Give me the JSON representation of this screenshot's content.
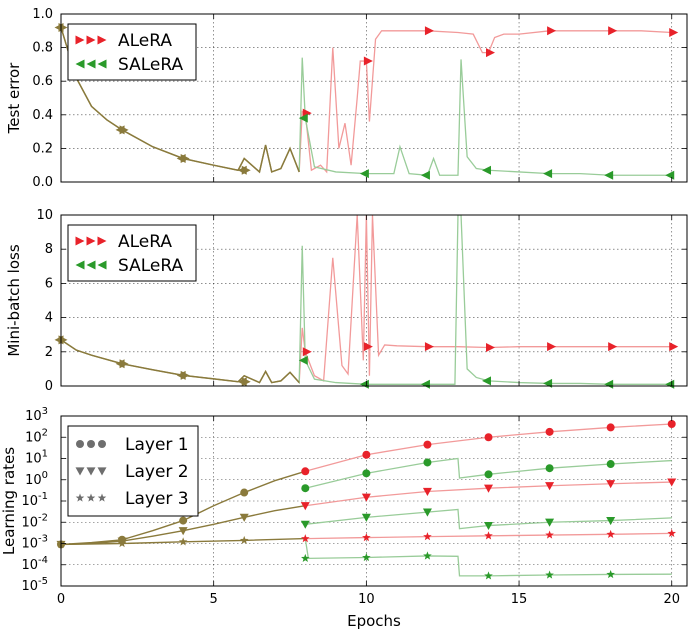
{
  "colors": {
    "alera": "#e8222a",
    "salera": "#2a9a2a",
    "alera_line": "#f29a9a",
    "salera_line": "#99cc99",
    "both": "#8a7a3c",
    "legend_gray": "#6e6e6e"
  },
  "chart_data": [
    {
      "type": "line",
      "ylabel": "Test error",
      "xlabel": "",
      "xlim": [
        0,
        20.5
      ],
      "ylim": [
        0,
        1
      ],
      "yticks": [
        "0.0",
        "0.2",
        "0.4",
        "0.6",
        "0.8",
        "1.0"
      ],
      "legend_position": "top-left",
      "series": [
        {
          "name": "ALeRA",
          "x": [
            0,
            0.5,
            1,
            1.5,
            2,
            3,
            4,
            5,
            5.8,
            6,
            6.5,
            6.7,
            6.9,
            7.2,
            7.5,
            7.8,
            7.9,
            8,
            8.2,
            8.5,
            8.7,
            8.9,
            9.1,
            9.3,
            9.5,
            9.7,
            9.8,
            10,
            10.1,
            10.3,
            10.5,
            10.8,
            11,
            12,
            13,
            13.5,
            13.8,
            14,
            14.2,
            14.5,
            15,
            16,
            17,
            18,
            19,
            20
          ],
          "y": [
            0.92,
            0.62,
            0.45,
            0.37,
            0.31,
            0.21,
            0.14,
            0.1,
            0.07,
            0.14,
            0.06,
            0.22,
            0.06,
            0.08,
            0.2,
            0.06,
            0.42,
            0.41,
            0.07,
            0.1,
            0.06,
            0.8,
            0.2,
            0.35,
            0.1,
            0.5,
            0.72,
            0.72,
            0.36,
            0.85,
            0.9,
            0.9,
            0.9,
            0.9,
            0.89,
            0.88,
            0.77,
            0.77,
            0.86,
            0.88,
            0.88,
            0.9,
            0.9,
            0.9,
            0.9,
            0.89
          ]
        },
        {
          "name": "SALeRA",
          "x": [
            0,
            0.5,
            1,
            1.5,
            2,
            3,
            4,
            5,
            5.8,
            6,
            6.5,
            6.7,
            6.9,
            7.2,
            7.5,
            7.8,
            7.9,
            8,
            8.3,
            9,
            10,
            10.9,
            11.1,
            11.4,
            12,
            12.2,
            12.4,
            13,
            13.1,
            13.3,
            13.6,
            14,
            15,
            16,
            17,
            18,
            19,
            20
          ],
          "y": [
            0.92,
            0.62,
            0.45,
            0.37,
            0.31,
            0.21,
            0.14,
            0.1,
            0.07,
            0.14,
            0.06,
            0.22,
            0.06,
            0.08,
            0.2,
            0.06,
            0.74,
            0.38,
            0.09,
            0.06,
            0.05,
            0.05,
            0.21,
            0.05,
            0.04,
            0.14,
            0.04,
            0.04,
            0.73,
            0.15,
            0.08,
            0.07,
            0.06,
            0.05,
            0.05,
            0.04,
            0.04,
            0.04
          ]
        }
      ],
      "markers": {
        "ALeRA": {
          "x": [
            0,
            2,
            4,
            6,
            8,
            10,
            12,
            14,
            16,
            18,
            20
          ],
          "y": [
            0.92,
            0.31,
            0.14,
            0.07,
            0.41,
            0.72,
            0.9,
            0.77,
            0.9,
            0.9,
            0.89
          ]
        },
        "SALeRA": {
          "x": [
            0,
            2,
            4,
            6,
            8,
            10,
            12,
            14,
            16,
            18,
            20
          ],
          "y": [
            0.92,
            0.31,
            0.14,
            0.07,
            0.38,
            0.05,
            0.04,
            0.07,
            0.05,
            0.04,
            0.04
          ]
        }
      }
    },
    {
      "type": "line",
      "ylabel": "Mini-batch loss",
      "xlabel": "",
      "xlim": [
        0,
        20.5
      ],
      "ylim": [
        0,
        10
      ],
      "yticks": [
        "0",
        "2",
        "4",
        "6",
        "8",
        "10"
      ],
      "legend_position": "top-left",
      "series": [
        {
          "name": "ALeRA",
          "x": [
            0,
            0.5,
            1,
            2,
            3,
            4,
            5,
            5.8,
            6,
            6.5,
            6.7,
            6.9,
            7.2,
            7.5,
            7.8,
            7.9,
            8,
            8.3,
            8.6,
            8.9,
            9.2,
            9.4,
            9.7,
            9.9,
            10,
            10.1,
            10.2,
            10.4,
            10.6,
            11,
            12,
            13,
            14,
            15,
            16,
            17,
            18,
            19,
            20
          ],
          "y": [
            2.7,
            2.1,
            1.8,
            1.3,
            0.95,
            0.62,
            0.42,
            0.25,
            0.6,
            0.2,
            0.85,
            0.2,
            0.3,
            0.8,
            0.2,
            3.4,
            2.0,
            0.6,
            0.3,
            7.5,
            1.2,
            0.7,
            10,
            1.5,
            10,
            0.6,
            10,
            1.8,
            2.4,
            2.35,
            2.3,
            2.3,
            2.25,
            2.3,
            2.3,
            2.3,
            2.3,
            2.3,
            2.3
          ]
        },
        {
          "name": "SALeRA",
          "x": [
            0,
            0.5,
            1,
            2,
            3,
            4,
            5,
            5.8,
            6,
            6.5,
            6.7,
            6.9,
            7.2,
            7.5,
            7.8,
            7.9,
            8,
            8.3,
            9,
            10,
            11,
            12,
            12.9,
            13,
            13.1,
            13.3,
            13.6,
            14,
            15,
            16,
            17,
            18,
            19,
            20
          ],
          "y": [
            2.7,
            2.1,
            1.8,
            1.3,
            0.95,
            0.62,
            0.42,
            0.25,
            0.6,
            0.2,
            0.85,
            0.2,
            0.3,
            0.8,
            0.2,
            8.2,
            1.5,
            0.4,
            0.2,
            0.1,
            0.1,
            0.1,
            0.1,
            10,
            10,
            1.0,
            0.5,
            0.3,
            0.2,
            0.15,
            0.15,
            0.1,
            0.1,
            0.1
          ]
        }
      ],
      "markers": {
        "ALeRA": {
          "x": [
            0,
            2,
            4,
            6,
            8,
            10,
            12,
            14,
            16,
            18,
            20
          ],
          "y": [
            2.7,
            1.3,
            0.62,
            0.25,
            2.0,
            2.3,
            2.3,
            2.25,
            2.3,
            2.3,
            2.3
          ]
        },
        "SALeRA": {
          "x": [
            0,
            2,
            4,
            6,
            8,
            10,
            12,
            14,
            16,
            18,
            20
          ],
          "y": [
            2.7,
            1.3,
            0.62,
            0.25,
            1.5,
            0.1,
            0.1,
            0.3,
            0.15,
            0.1,
            0.1
          ]
        }
      }
    },
    {
      "type": "line",
      "ylabel": "Learning rates",
      "xlabel": "Epochs",
      "xlim": [
        0,
        20.5
      ],
      "ylim": [
        1e-05,
        1000
      ],
      "yscale": "log",
      "yticks": [
        {
          "base": "10",
          "exp": "-5"
        },
        {
          "base": "10",
          "exp": "-4"
        },
        {
          "base": "10",
          "exp": "-3"
        },
        {
          "base": "10",
          "exp": "-2"
        },
        {
          "base": "10",
          "exp": "-1"
        },
        {
          "base": "10",
          "exp": "0"
        },
        {
          "base": "10",
          "exp": "1"
        },
        {
          "base": "10",
          "exp": "2"
        },
        {
          "base": "10",
          "exp": "3"
        }
      ],
      "xticks": [
        "0",
        "5",
        "10",
        "15",
        "20"
      ],
      "legend_position": "top-left",
      "legend": [
        "Layer 1",
        "Layer 2",
        "Layer 3"
      ],
      "series": [
        {
          "layer": 1,
          "method": "ALeRA",
          "x": [
            8,
            10,
            12,
            14,
            16,
            18,
            20
          ],
          "y": [
            2.5,
            15,
            45,
            100,
            180,
            290,
            420
          ]
        },
        {
          "layer": 1,
          "method": "SALeRA",
          "x": [
            8,
            10,
            12,
            13,
            13.05,
            14,
            16,
            18,
            20
          ],
          "y": [
            0.4,
            2,
            6.5,
            10,
            1.2,
            1.8,
            3.5,
            5.5,
            8
          ]
        },
        {
          "layer": 2,
          "method": "ALeRA",
          "x": [
            8,
            10,
            12,
            14,
            16,
            18,
            20
          ],
          "y": [
            0.06,
            0.15,
            0.28,
            0.4,
            0.52,
            0.65,
            0.78
          ]
        },
        {
          "layer": 2,
          "method": "SALeRA",
          "x": [
            8,
            10,
            12,
            13,
            13.05,
            14,
            16,
            18,
            20
          ],
          "y": [
            0.008,
            0.017,
            0.03,
            0.04,
            0.005,
            0.007,
            0.01,
            0.012,
            0.016
          ]
        },
        {
          "layer": 3,
          "method": "ALeRA",
          "x": [
            8,
            10,
            12,
            14,
            16,
            18,
            20
          ],
          "y": [
            0.0017,
            0.0019,
            0.0021,
            0.0023,
            0.0025,
            0.0027,
            0.003
          ]
        },
        {
          "layer": 3,
          "method": "SALeRA",
          "x": [
            8,
            8.1,
            10,
            12,
            13,
            13.05,
            14,
            16,
            18,
            20
          ],
          "y": [
            0.0017,
            0.0002,
            0.00022,
            0.00026,
            0.00025,
            3e-05,
            3e-05,
            3.3e-05,
            3.5e-05,
            3.6e-05
          ]
        },
        {
          "layer": 1,
          "method": "both",
          "x": [
            0,
            1,
            2,
            3,
            4,
            5,
            6,
            7,
            8
          ],
          "y": [
            0.0009,
            0.0011,
            0.0015,
            0.004,
            0.012,
            0.06,
            0.25,
            0.9,
            2.5
          ]
        },
        {
          "layer": 2,
          "method": "both",
          "x": [
            0,
            1,
            2,
            3,
            4,
            5,
            6,
            7,
            8
          ],
          "y": [
            0.0009,
            0.001,
            0.0013,
            0.0022,
            0.004,
            0.008,
            0.017,
            0.035,
            0.06
          ]
        },
        {
          "layer": 3,
          "method": "both",
          "x": [
            0,
            2,
            4,
            6,
            8
          ],
          "y": [
            0.0009,
            0.001,
            0.0012,
            0.0014,
            0.0017
          ]
        }
      ],
      "markers": [
        {
          "layer": 1,
          "color": "both",
          "x": [
            0,
            2,
            4,
            6
          ],
          "y": [
            0.0009,
            0.0015,
            0.012,
            0.25
          ]
        },
        {
          "layer": 2,
          "color": "both",
          "x": [
            0,
            2,
            4,
            6
          ],
          "y": [
            0.0009,
            0.0013,
            0.004,
            0.017
          ]
        },
        {
          "layer": 3,
          "color": "both",
          "x": [
            0,
            2,
            4,
            6
          ],
          "y": [
            0.0009,
            0.001,
            0.0012,
            0.0014
          ]
        },
        {
          "layer": 1,
          "color": "alera",
          "x": [
            8,
            10,
            12,
            14,
            16,
            18,
            20
          ],
          "y": [
            2.5,
            15,
            45,
            100,
            180,
            290,
            420
          ]
        },
        {
          "layer": 1,
          "color": "salera",
          "x": [
            8,
            10,
            12,
            14,
            16,
            18
          ],
          "y": [
            0.4,
            2,
            6.5,
            1.8,
            3.5,
            5.5
          ]
        },
        {
          "layer": 2,
          "color": "alera",
          "x": [
            8,
            10,
            12,
            14,
            16,
            18,
            20
          ],
          "y": [
            0.06,
            0.15,
            0.28,
            0.4,
            0.52,
            0.65,
            0.78
          ]
        },
        {
          "layer": 2,
          "color": "salera",
          "x": [
            8,
            10,
            12,
            14,
            16,
            18
          ],
          "y": [
            0.008,
            0.017,
            0.03,
            0.007,
            0.01,
            0.012
          ]
        },
        {
          "layer": 3,
          "color": "alera",
          "x": [
            8,
            10,
            12,
            14,
            16,
            18,
            20
          ],
          "y": [
            0.0017,
            0.0019,
            0.0021,
            0.0023,
            0.0025,
            0.0027,
            0.003
          ]
        },
        {
          "layer": 3,
          "color": "salera",
          "x": [
            8,
            10,
            12,
            14,
            16,
            18
          ],
          "y": [
            0.0002,
            0.00022,
            0.00026,
            3e-05,
            3.3e-05,
            3.5e-05
          ]
        }
      ]
    }
  ]
}
